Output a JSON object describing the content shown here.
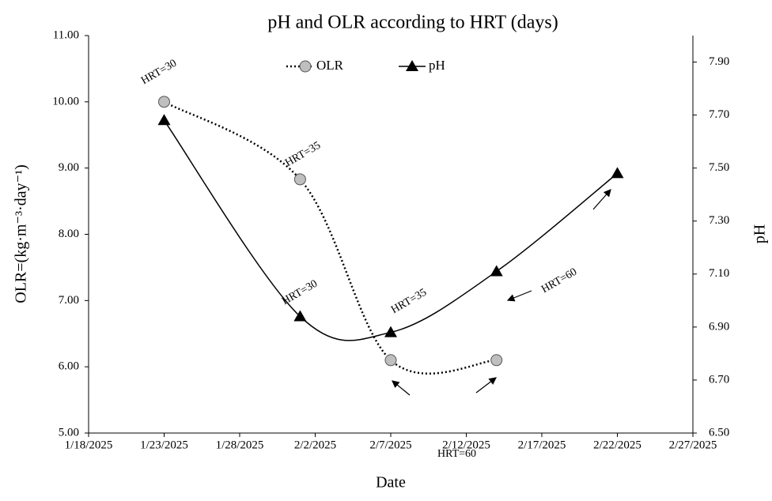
{
  "chart_data": {
    "type": "line",
    "title": "pH and OLR according to HRT (days)",
    "x_label": "Date",
    "y_label": "OLR=(kg·m⁻³·day⁻¹)",
    "y2_label": "pH",
    "x": [
      "1/23/2025",
      "2/1/2025",
      "2/7/2025",
      "2/14/2025",
      "2/22/2025"
    ],
    "series": [
      {
        "name": "OLR",
        "color": "#bfbfbf",
        "style": "dotted",
        "marker": "circle",
        "values": [
          10.0,
          8.83,
          6.1,
          6.1,
          null
        ]
      },
      {
        "name": "pH",
        "color": "#000000",
        "style": "solid",
        "marker": "triangle",
        "axis": "y2",
        "values": [
          7.68,
          6.94,
          6.88,
          7.11,
          7.48
        ]
      }
    ],
    "xlim": [
      "1/18/2025",
      "2/27/2025"
    ],
    "xticks": [
      "1/18/2025",
      "1/23/2025",
      "1/28/2025",
      "2/2/2025",
      "2/7/2025",
      "2/12/2025",
      "2/17/2025",
      "2/22/2025",
      "2/27/2025"
    ],
    "ylim": [
      5,
      11
    ],
    "yticks": [
      {
        "value": 5,
        "label": "5.00"
      },
      {
        "value": 6,
        "label": "6.00"
      },
      {
        "value": 7,
        "label": "7.00"
      },
      {
        "value": 8,
        "label": "8.00"
      },
      {
        "value": 9,
        "label": "9.00"
      },
      {
        "value": 10,
        "label": "10.00"
      },
      {
        "value": 11,
        "label": "11.00"
      }
    ],
    "y2lim": [
      6.5,
      8.0
    ],
    "y2ticks": [
      {
        "value": 6.5,
        "label": "6.50"
      },
      {
        "value": 6.7,
        "label": "6.70"
      },
      {
        "value": 6.9,
        "label": "6.90"
      },
      {
        "value": 7.1,
        "label": "7.10"
      },
      {
        "value": 7.3,
        "label": "7.30"
      },
      {
        "value": 7.5,
        "label": "7.50"
      },
      {
        "value": 7.7,
        "label": "7.70"
      },
      {
        "value": 7.9,
        "label": "7.90"
      }
    ],
    "legend": "top",
    "annotations": [
      "HRT=30",
      "HRT=35",
      "HRT=30",
      "HRT=35",
      "HRT=60",
      "HRT=60"
    ]
  }
}
